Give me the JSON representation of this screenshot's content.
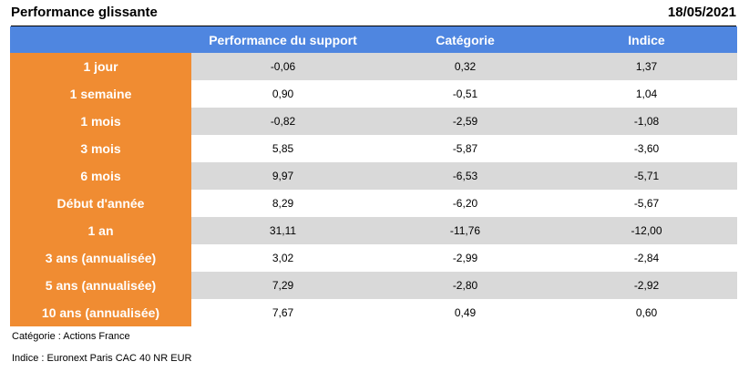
{
  "header": {
    "title": "Performance glissante",
    "date": "18/05/2021"
  },
  "table": {
    "columns": [
      "Performance du support",
      "Catégorie",
      "Indice"
    ],
    "rows": [
      {
        "label": "1 jour",
        "support": "-0,06",
        "categorie": "0,32",
        "indice": "1,37"
      },
      {
        "label": "1 semaine",
        "support": "0,90",
        "categorie": "-0,51",
        "indice": "1,04"
      },
      {
        "label": "1 mois",
        "support": "-0,82",
        "categorie": "-2,59",
        "indice": "-1,08"
      },
      {
        "label": "3 mois",
        "support": "5,85",
        "categorie": "-5,87",
        "indice": "-3,60"
      },
      {
        "label": "6 mois",
        "support": "9,97",
        "categorie": "-6,53",
        "indice": "-5,71"
      },
      {
        "label": "Début d'année",
        "support": "8,29",
        "categorie": "-6,20",
        "indice": "-5,67"
      },
      {
        "label": "1 an",
        "support": "31,11",
        "categorie": "-11,76",
        "indice": "-12,00"
      },
      {
        "label": "3 ans (annualisée)",
        "support": "3,02",
        "categorie": "-2,99",
        "indice": "-2,84"
      },
      {
        "label": "5 ans (annualisée)",
        "support": "7,29",
        "categorie": "-2,80",
        "indice": "-2,92"
      },
      {
        "label": "10 ans (annualisée)",
        "support": "7,67",
        "categorie": "0,49",
        "indice": "0,60"
      }
    ]
  },
  "notes": {
    "categorie": "Catégorie : Actions France",
    "indice": "Indice : Euronext Paris CAC 40 NR EUR"
  },
  "colors": {
    "header_bg": "#4f86e0",
    "label_bg": "#f08c32",
    "stripe_bg": "#d9d9d9"
  }
}
